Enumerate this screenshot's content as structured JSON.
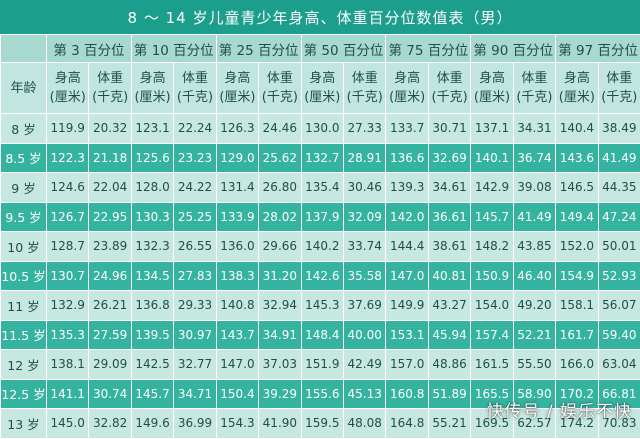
{
  "title": "8 ～ 14 岁儿童青少年身高、体重百分位数值表（男）",
  "header": {
    "age_label": "年龄",
    "percentiles": [
      "第 3 百分位",
      "第 10 百分位",
      "第 25 百分位",
      "第 50 百分位",
      "第 75 百分位",
      "第 90 百分位",
      "第 97 百分位"
    ],
    "height_label": "身高",
    "height_unit": "(厘米)",
    "weight_label": "体重",
    "weight_unit": "(千克)"
  },
  "rows": [
    {
      "age": "8 岁",
      "values": [
        "119.9",
        "20.32",
        "123.1",
        "22.24",
        "126.3",
        "24.46",
        "130.0",
        "27.33",
        "133.7",
        "30.71",
        "137.1",
        "34.31",
        "140.4",
        "38.49"
      ]
    },
    {
      "age": "8.5 岁",
      "values": [
        "122.3",
        "21.18",
        "125.6",
        "23.23",
        "129.0",
        "25.62",
        "132.7",
        "28.91",
        "136.6",
        "32.69",
        "140.1",
        "36.74",
        "143.6",
        "41.49"
      ]
    },
    {
      "age": "9 岁",
      "values": [
        "124.6",
        "22.04",
        "128.0",
        "24.22",
        "131.4",
        "26.80",
        "135.4",
        "30.46",
        "139.3",
        "34.61",
        "142.9",
        "39.08",
        "146.5",
        "44.35"
      ]
    },
    {
      "age": "9.5 岁",
      "values": [
        "126.7",
        "22.95",
        "130.3",
        "25.25",
        "133.9",
        "28.02",
        "137.9",
        "32.09",
        "142.0",
        "36.61",
        "145.7",
        "41.49",
        "149.4",
        "47.24"
      ]
    },
    {
      "age": "10 岁",
      "values": [
        "128.7",
        "23.89",
        "132.3",
        "26.55",
        "136.0",
        "29.66",
        "140.2",
        "33.74",
        "144.4",
        "38.61",
        "148.2",
        "43.85",
        "152.0",
        "50.01"
      ]
    },
    {
      "age": "10.5 岁",
      "values": [
        "130.7",
        "24.96",
        "134.5",
        "27.83",
        "138.3",
        "31.20",
        "142.6",
        "35.58",
        "147.0",
        "40.81",
        "150.9",
        "46.40",
        "154.9",
        "52.93"
      ]
    },
    {
      "age": "11 岁",
      "values": [
        "132.9",
        "26.21",
        "136.8",
        "29.33",
        "140.8",
        "32.94",
        "145.3",
        "37.69",
        "149.9",
        "43.27",
        "154.0",
        "49.20",
        "158.1",
        "56.07"
      ]
    },
    {
      "age": "11.5 岁",
      "values": [
        "135.3",
        "27.59",
        "139.5",
        "30.97",
        "143.7",
        "34.91",
        "148.4",
        "40.00",
        "153.1",
        "45.94",
        "157.4",
        "52.21",
        "161.7",
        "59.40"
      ]
    },
    {
      "age": "12 岁",
      "values": [
        "138.1",
        "29.09",
        "142.5",
        "32.77",
        "147.0",
        "37.03",
        "151.9",
        "42.49",
        "157.0",
        "48.86",
        "161.5",
        "55.50",
        "166.0",
        "63.04"
      ]
    },
    {
      "age": "12.5 岁",
      "values": [
        "141.1",
        "30.74",
        "145.7",
        "34.71",
        "150.4",
        "39.29",
        "155.6",
        "45.13",
        "160.8",
        "51.89",
        "165.5",
        "58.90",
        "170.2",
        "66.81"
      ]
    },
    {
      "age": "13 岁",
      "values": [
        "145.0",
        "32.82",
        "149.6",
        "36.99",
        "154.3",
        "41.90",
        "159.5",
        "48.08",
        "164.8",
        "55.21",
        "169.5",
        "62.57",
        "174.2",
        "70.83"
      ]
    }
  ],
  "watermark": "快传号 / 娱乐不快",
  "colors": {
    "title_bar": "#1b9e8c",
    "row_dark": "#34b4a0",
    "row_light": "#c7e8e1",
    "header_top": "#a6d9d0",
    "header_sub": "#c2e6df"
  }
}
